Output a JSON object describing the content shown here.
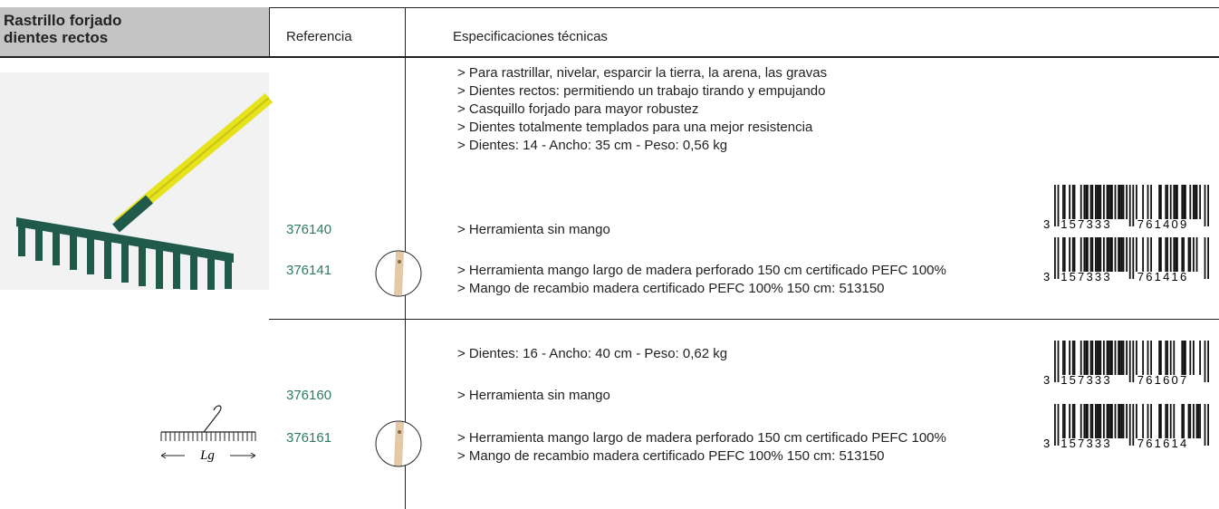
{
  "header": {
    "title_lines": [
      "Rastrillo forjado",
      "dientes rectos"
    ],
    "columns": [
      "Referencia",
      "Especificaciones técnicas"
    ]
  },
  "sections": [
    {
      "specs": [
        "> Para rastrillar, nivelar, esparcir la tierra, la arena, las gravas",
        "> Dientes rectos: permitiendo un trabajo tirando y empujando",
        "> Casquillo forjado para mayor robustez",
        "> Dientes totalmente templados para una mejor resistencia",
        "> Dientes: 14 - Ancho: 35 cm - Peso: 0,56 kg"
      ],
      "rows": [
        {
          "ref": "376140",
          "specs": [
            "> Herramienta sin mango"
          ],
          "barcode": [
            "3",
            "157333",
            "761409"
          ]
        },
        {
          "ref": "376141",
          "specs": [
            "> Herramienta mango largo de madera perforado 150 cm certificado PEFC 100%",
            "> Mango de recambio madera certificado PEFC 100% 150 cm: 513150"
          ],
          "barcode": [
            "3",
            "157333",
            "761416"
          ]
        }
      ]
    },
    {
      "specs": [
        "> Dientes: 16 - Ancho: 40 cm - Peso: 0,62 kg"
      ],
      "diagram_label": "Lg",
      "rows": [
        {
          "ref": "376160",
          "specs": [
            "> Herramienta sin mango"
          ],
          "barcode": [
            "3",
            "157333",
            "761607"
          ]
        },
        {
          "ref": "376161",
          "specs": [
            "> Herramienta mango largo de madera perforado 150 cm certificado PEFC 100%",
            "> Mango de recambio madera certificado PEFC 100% 150 cm: 513150"
          ],
          "barcode": [
            "3",
            "157333",
            "761614"
          ]
        }
      ]
    }
  ]
}
